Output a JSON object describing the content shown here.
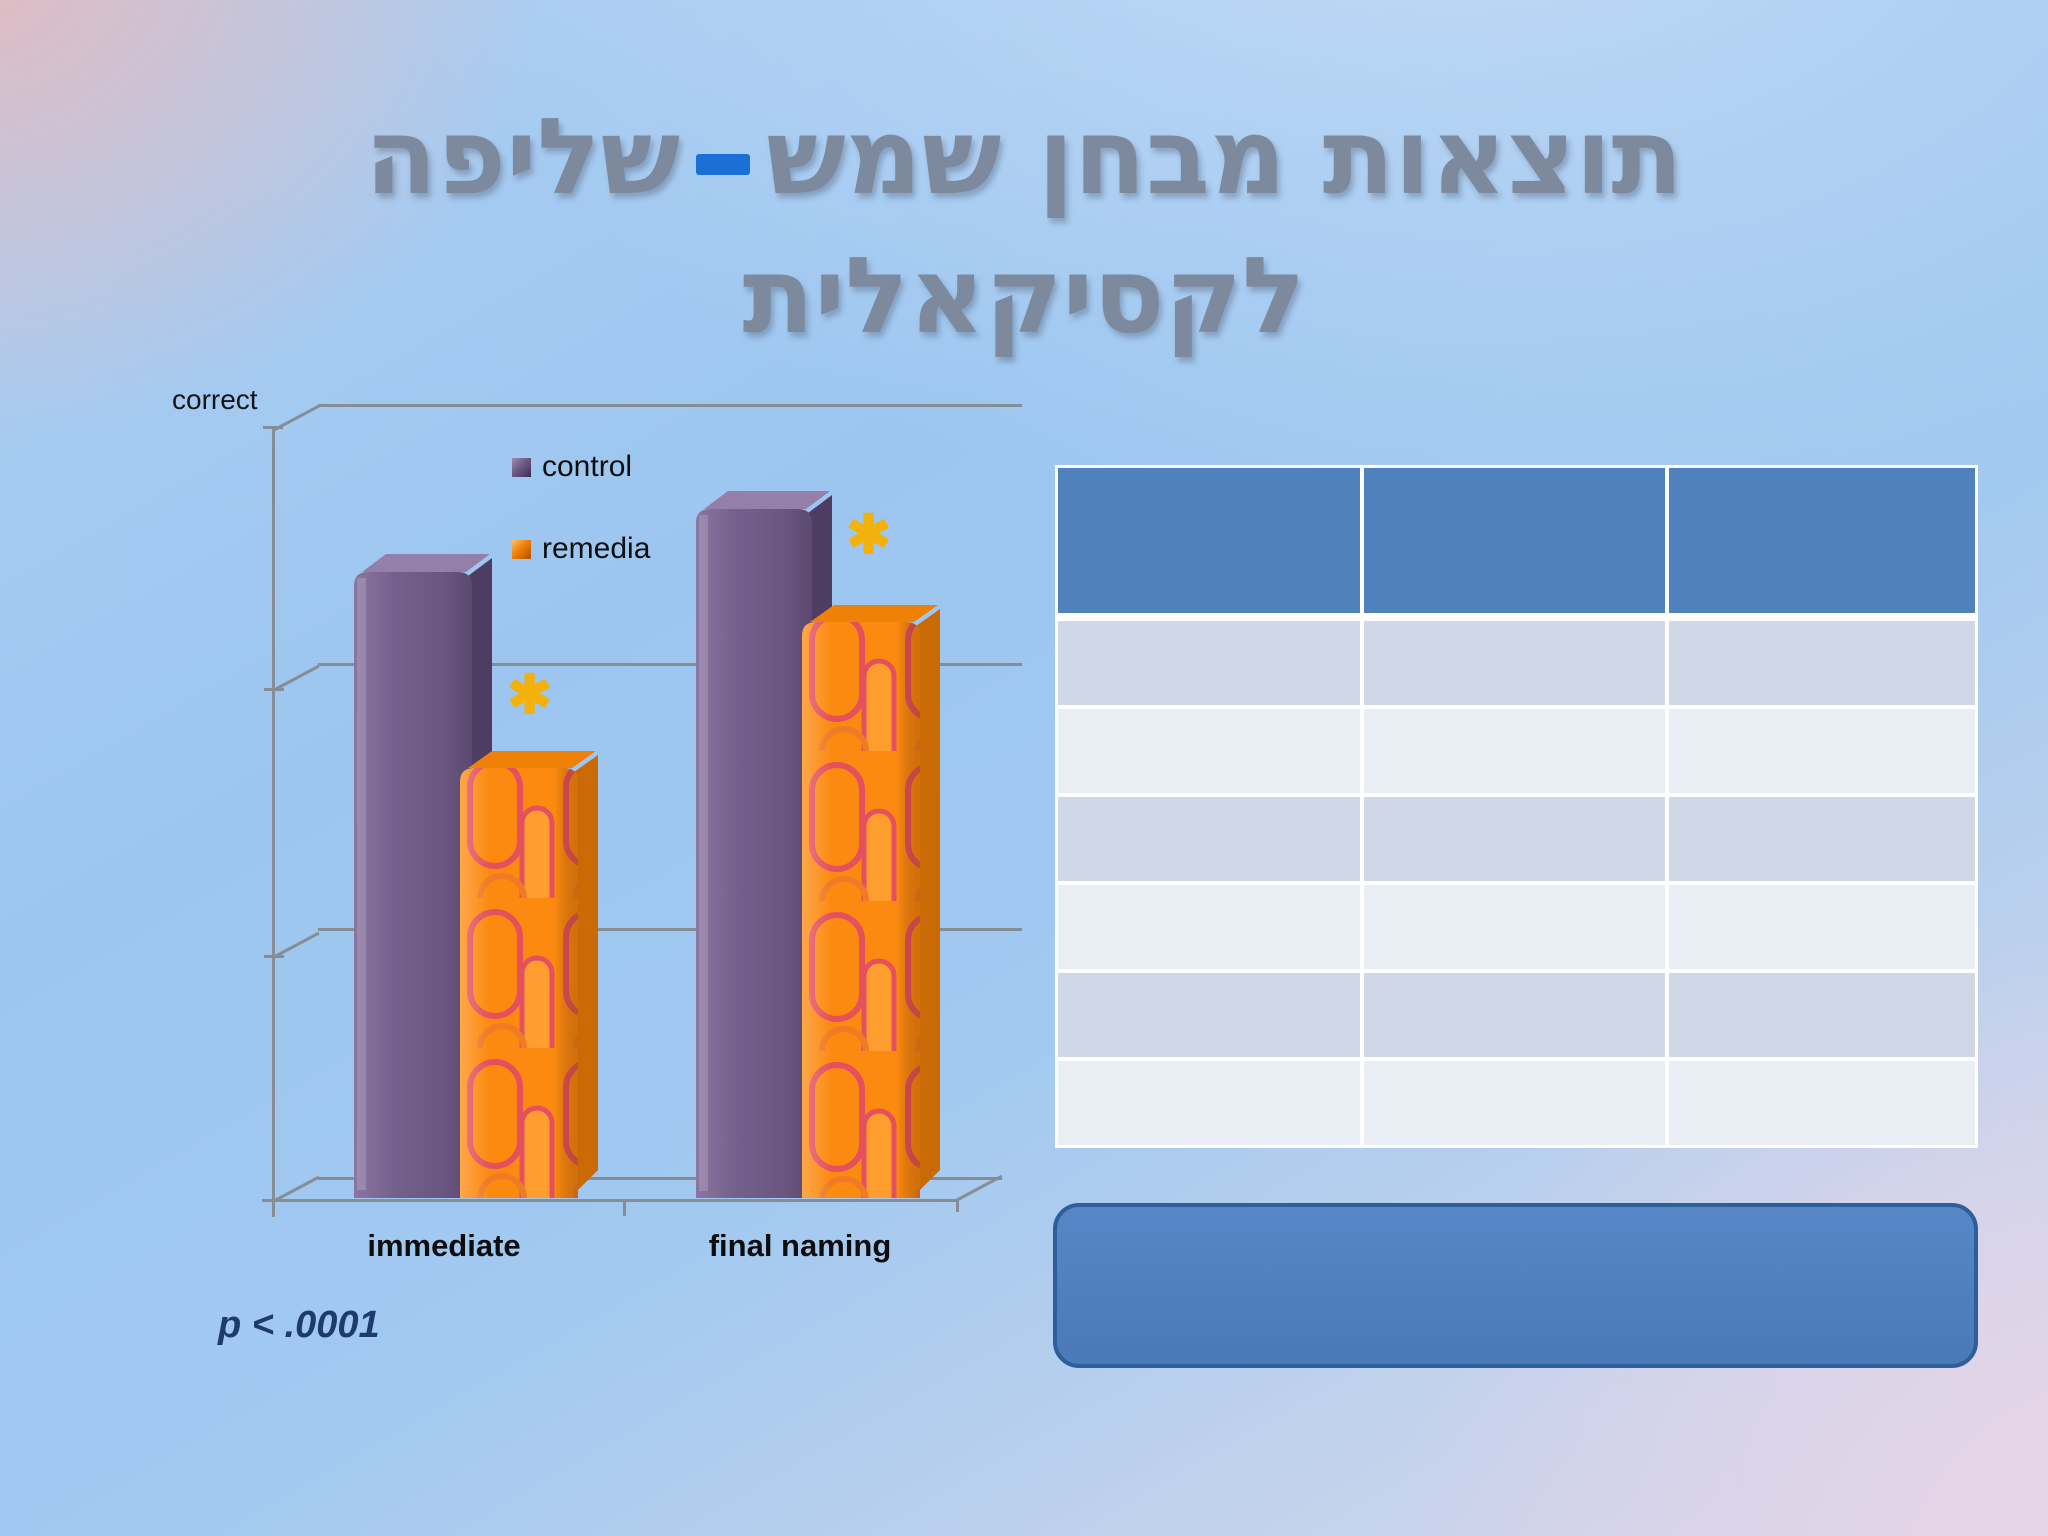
{
  "slide": {
    "title": {
      "part_right": "תוצאות מבחן שמש",
      "dash": "–",
      "part_left": "שליפה",
      "line2": "לקסיקאלית"
    }
  },
  "colors": {
    "title-color": "#7d8a9d",
    "dash-blue": "#1b70d5",
    "gridline": "#868d94",
    "sig-gold": "#f2b10b",
    "pvalue-color": "#1d3c6b",
    "purple-front": "#6e5a86",
    "purple-top": "#937fa9",
    "purple-side": "#4e3d63",
    "orange-base": "#fc8a10",
    "orange-pattern-accent": "#e4505e",
    "orange-side": "#c96a04",
    "table-header": "#4f81bd",
    "table-band-dark": "#d0d8e8",
    "table-band-light": "#e9edf4",
    "callout-fill": "#4a79b7",
    "callout-border": "#2f5f9a"
  },
  "chart": {
    "axis_label": "correct",
    "legend": [
      {
        "label": "control",
        "color": "#6e5a86"
      },
      {
        "label": "remedia",
        "color": "#fc8a10"
      }
    ],
    "categories": [
      {
        "label": "immediate"
      },
      {
        "label": "final naming"
      }
    ],
    "significance_marker": "✱",
    "p_value": "p < .0001"
  },
  "chart_data": {
    "type": "bar",
    "title": "",
    "xlabel": "",
    "ylabel": "correct",
    "categories": [
      "immediate",
      "final naming"
    ],
    "series": [
      {
        "name": "control",
        "values": [
          0.81,
          0.89
        ]
      },
      {
        "name": "remedia",
        "values": [
          0.55,
          0.74
        ]
      }
    ],
    "ylim": [
      0,
      1
    ],
    "gridlines": [
      0.333,
      0.667
    ],
    "legend_position": "upper-center",
    "annotations": [
      "yellow * significance marker above the remedia bar of each category",
      "p < .0001 shown below the chart"
    ],
    "note": "3D perspective bar chart; y-axis has no numeric tick labels, values estimated as fraction of full axis height (3 equal grid divisions)"
  },
  "table": {
    "columns": [
      "",
      "",
      ""
    ],
    "rows": [
      [
        "",
        "",
        ""
      ],
      [
        "",
        "",
        ""
      ],
      [
        "",
        "",
        ""
      ],
      [
        "",
        "",
        ""
      ],
      [
        "",
        "",
        ""
      ],
      [
        "",
        "",
        ""
      ]
    ]
  },
  "callout": {
    "text": ""
  }
}
